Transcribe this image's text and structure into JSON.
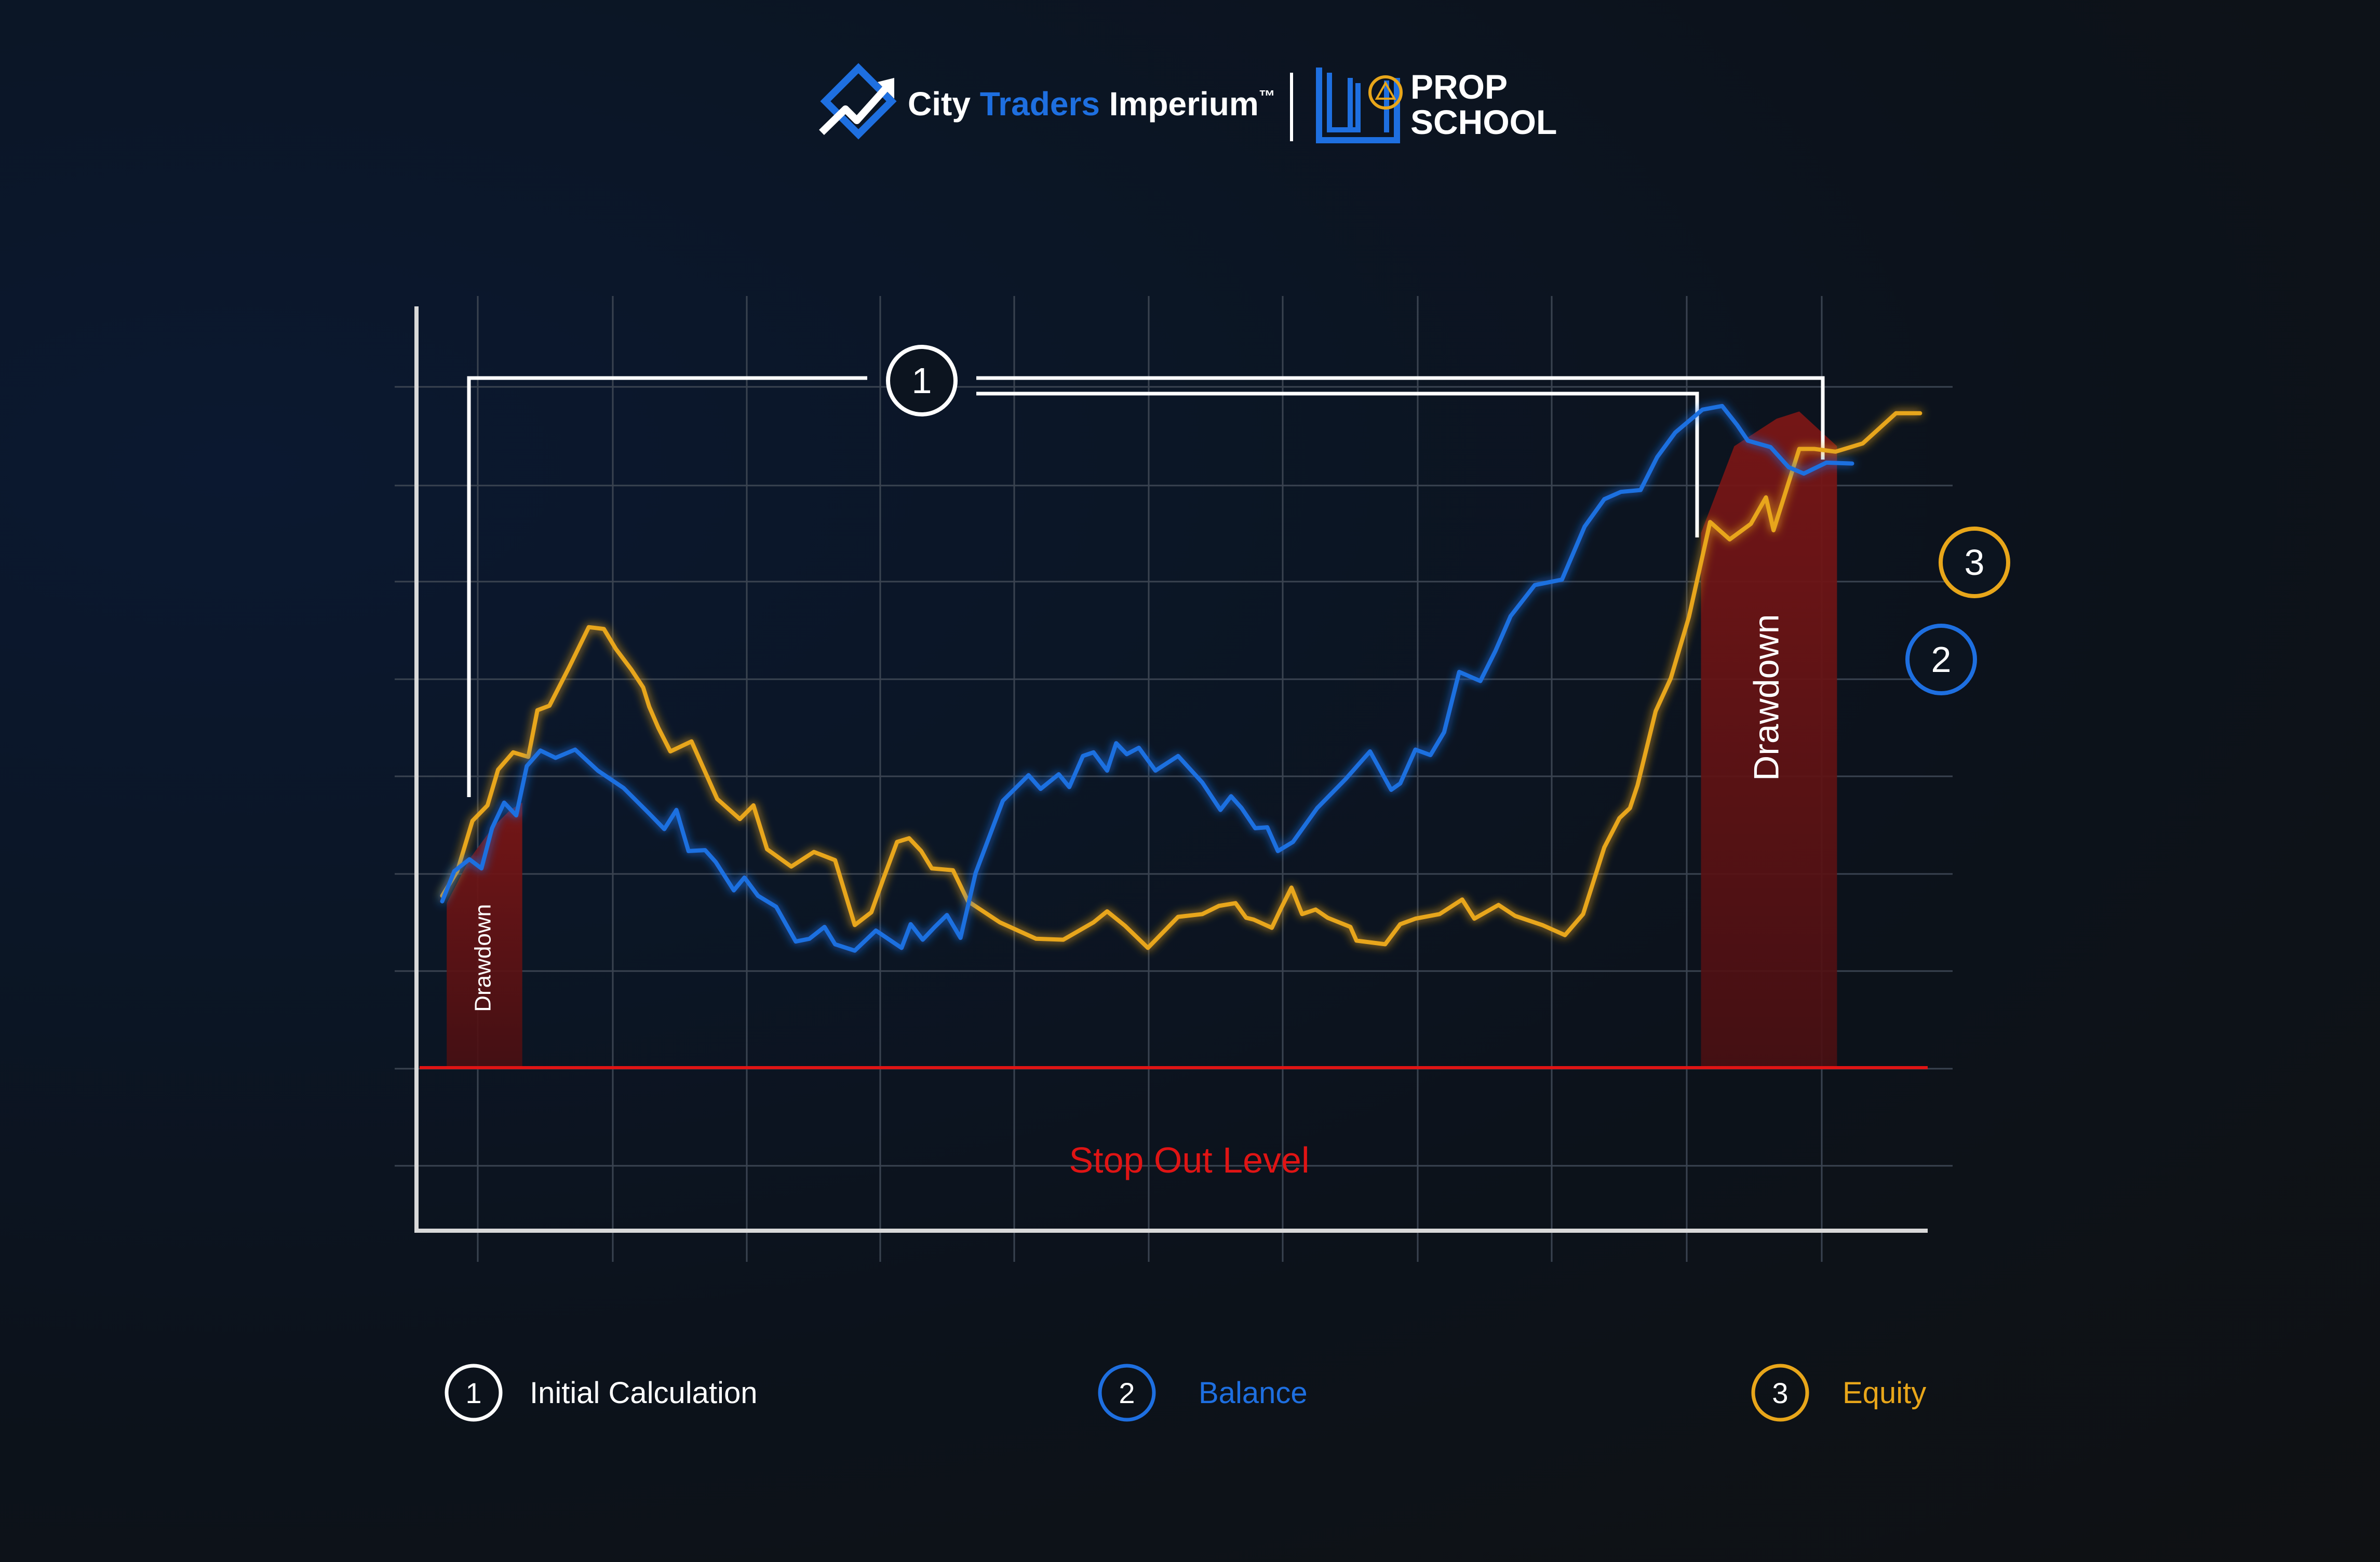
{
  "header": {
    "brand_city": "City ",
    "brand_traders": "Traders",
    "brand_imperium": " Imperium",
    "brand_tm": "™",
    "brand_prop": "PROP",
    "brand_school": "SCHOOL"
  },
  "colors": {
    "balance": "#1e6fe0",
    "equity": "#e8a61a",
    "initial": "#ffffff",
    "stop_out": "#e01414",
    "drawdown_fill": "#6a1414",
    "grid": "#3a4350",
    "axis": "#d9d9d9"
  },
  "icons": {
    "cti_logo": "chart-arrow-icon",
    "prop_school_logo": "book-icon"
  },
  "markers": {
    "initial": "1",
    "balance": "2",
    "equity": "3"
  },
  "legend": [
    {
      "number": "1",
      "label": "Initial Calculation",
      "color": "#ffffff"
    },
    {
      "number": "2",
      "label": "Balance",
      "color": "#1e6fe0"
    },
    {
      "number": "3",
      "label": "Equity",
      "color": "#e8a61a"
    }
  ],
  "chart_data": {
    "type": "line",
    "title": "",
    "xlabel": "",
    "ylabel": "",
    "xlim": [
      0,
      1000
    ],
    "ylim": [
      0,
      1000
    ],
    "grid": true,
    "legend_position": "bottom",
    "stop_out": {
      "label": "Stop Out Level",
      "y": 150
    },
    "drawdown_labels": [
      "Drawdown",
      "Drawdown"
    ],
    "drawdown_regions": [
      {
        "label": "Drawdown",
        "x_start": 20,
        "x_end": 70
      },
      {
        "label": "Drawdown",
        "x_start": 850,
        "x_end": 940
      }
    ],
    "series": [
      {
        "name": "Balance",
        "color": "#1e6fe0",
        "x": [
          17,
          25,
          35,
          43,
          50,
          58,
          66,
          73,
          82,
          92,
          105,
          120,
          137,
          154,
          164,
          172,
          180,
          191,
          198,
          210,
          217,
          226,
          238,
          251,
          260,
          270,
          277,
          290,
          304,
          321,
          327,
          335,
          343,
          351,
          360,
          370,
          388,
          405,
          413,
          425,
          432,
          441,
          448,
          457,
          463,
          470,
          478,
          489,
          504,
          520,
          532,
          539,
          546,
          555,
          563,
          570,
          580,
          596,
          615,
          631,
          645,
          651,
          661,
          671,
          680,
          690,
          704,
          714,
          724,
          740,
          758,
          773,
          786,
          797,
          810,
          821,
          833,
          851,
          864,
          874,
          881,
          896,
          908,
          918,
          933,
          950
        ],
        "y": [
          332,
          365,
          378,
          368,
          412,
          440,
          426,
          480,
          497,
          489,
          498,
          475,
          456,
          428,
          411,
          432,
          387,
          388,
          375,
          344,
          358,
          338,
          326,
          288,
          291,
          304,
          285,
          278,
          300,
          281,
          307,
          290,
          304,
          317,
          292,
          363,
          442,
          470,
          455,
          471,
          457,
          491,
          495,
          475,
          505,
          493,
          500,
          475,
          491,
          462,
          432,
          447,
          434,
          412,
          413,
          387,
          397,
          434,
          466,
          496,
          454,
          461,
          498,
          492,
          517,
          583,
          573,
          606,
          644,
          678,
          684,
          742,
          772,
          780,
          782,
          818,
          845,
          870,
          874,
          853,
          836,
          829,
          807,
          800,
          812,
          811
        ]
      },
      {
        "name": "Equity",
        "color": "#e8a61a",
        "x": [
          17,
          27,
          37,
          47,
          54,
          64,
          74,
          80,
          88,
          101,
          114,
          124,
          132,
          142,
          150,
          154,
          160,
          168,
          182,
          199,
          214,
          223,
          232,
          248,
          263,
          277,
          290,
          301,
          309,
          318,
          326,
          334,
          341,
          355,
          365,
          386,
          410,
          428,
          448,
          457,
          469,
          484,
          504,
          520,
          531,
          542,
          549,
          554,
          566,
          572,
          579,
          586,
          595,
          603,
          618,
          622,
          641,
          651,
          661,
          677,
          692,
          700,
          716,
          727,
          745,
          760,
          772,
          786,
          796,
          803,
          808,
          820,
          830,
          842,
          856,
          869,
          883,
          893,
          898,
          915,
          925,
          939,
          957,
          979,
          995
        ],
        "y": [
          338,
          365,
          420,
          437,
          476,
          495,
          490,
          541,
          546,
          588,
          632,
          630,
          608,
          586,
          566,
          545,
          522,
          496,
          507,
          444,
          422,
          437,
          389,
          370,
          386,
          377,
          306,
          320,
          357,
          397,
          401,
          387,
          368,
          366,
          332,
          309,
          291,
          290,
          309,
          321,
          305,
          281,
          315,
          318,
          327,
          330,
          314,
          312,
          303,
          324,
          347,
          318,
          323,
          314,
          304,
          289,
          285,
          307,
          313,
          318,
          334,
          313,
          328,
          316,
          306,
          295,
          318,
          391,
          423,
          434,
          459,
          540,
          576,
          643,
          747,
          728,
          745,
          774,
          738,
          827,
          827,
          824,
          833,
          866,
          866
        ]
      }
    ]
  }
}
